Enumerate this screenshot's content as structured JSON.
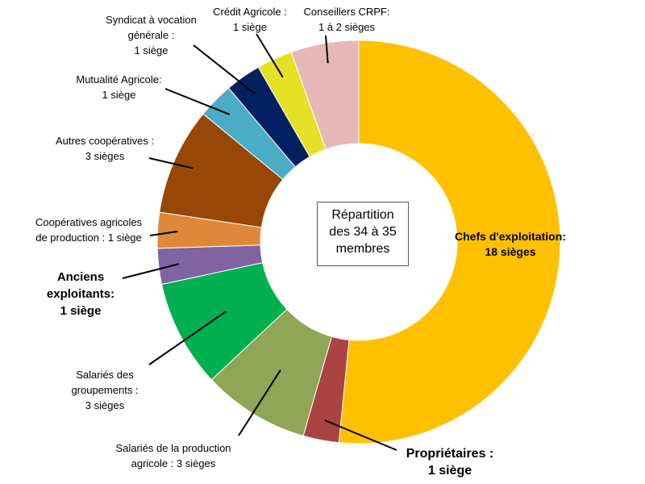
{
  "chart_data": {
    "type": "pie",
    "center_title": [
      "Répartition",
      "des 34 à 35",
      "membres"
    ],
    "slices": [
      {
        "id": "chefs",
        "value": 18,
        "color": "#FFC000",
        "label": [
          "Chefs d'exploitation:",
          "18 sièges"
        ]
      },
      {
        "id": "proprietaires",
        "value": 1,
        "color": "#A94442",
        "label": [
          "Propriétaires :",
          "1 siège"
        ]
      },
      {
        "id": "salaries-prod",
        "value": 3,
        "color": "#8FA656",
        "label": [
          "Salariés de la production",
          "agricole : 3 sièges"
        ]
      },
      {
        "id": "salaries-grp",
        "value": 3,
        "color": "#00B050",
        "label": [
          "Salariés des",
          "groupements :",
          "3 sièges"
        ]
      },
      {
        "id": "anciens",
        "value": 1,
        "color": "#8064A2",
        "label": [
          "Anciens",
          "exploitants:",
          "1 siège"
        ]
      },
      {
        "id": "coop-prod",
        "value": 1,
        "color": "#E0883A",
        "label": [
          "Coopératives agricoles",
          "de production : 1 siège"
        ]
      },
      {
        "id": "autres-coop",
        "value": 3,
        "color": "#974706",
        "label": [
          "Autres coopératives :",
          "3 sièges"
        ]
      },
      {
        "id": "mutualite",
        "value": 1,
        "color": "#4BACC6",
        "label": [
          "Mutualité Agricole:",
          "1 siège"
        ]
      },
      {
        "id": "syndicat",
        "value": 1,
        "color": "#002060",
        "label": [
          "Syndicat à vocation",
          "générale :",
          "1 siège"
        ]
      },
      {
        "id": "credit",
        "value": 1,
        "color": "#E6E027",
        "label": [
          "Crédit Agricole :",
          "1 siège"
        ]
      },
      {
        "id": "crpf",
        "value": 1.9,
        "color": "#E6B9B8",
        "label": [
          "Conseillers CRPF:",
          "1 à 2 sièges"
        ]
      }
    ]
  }
}
